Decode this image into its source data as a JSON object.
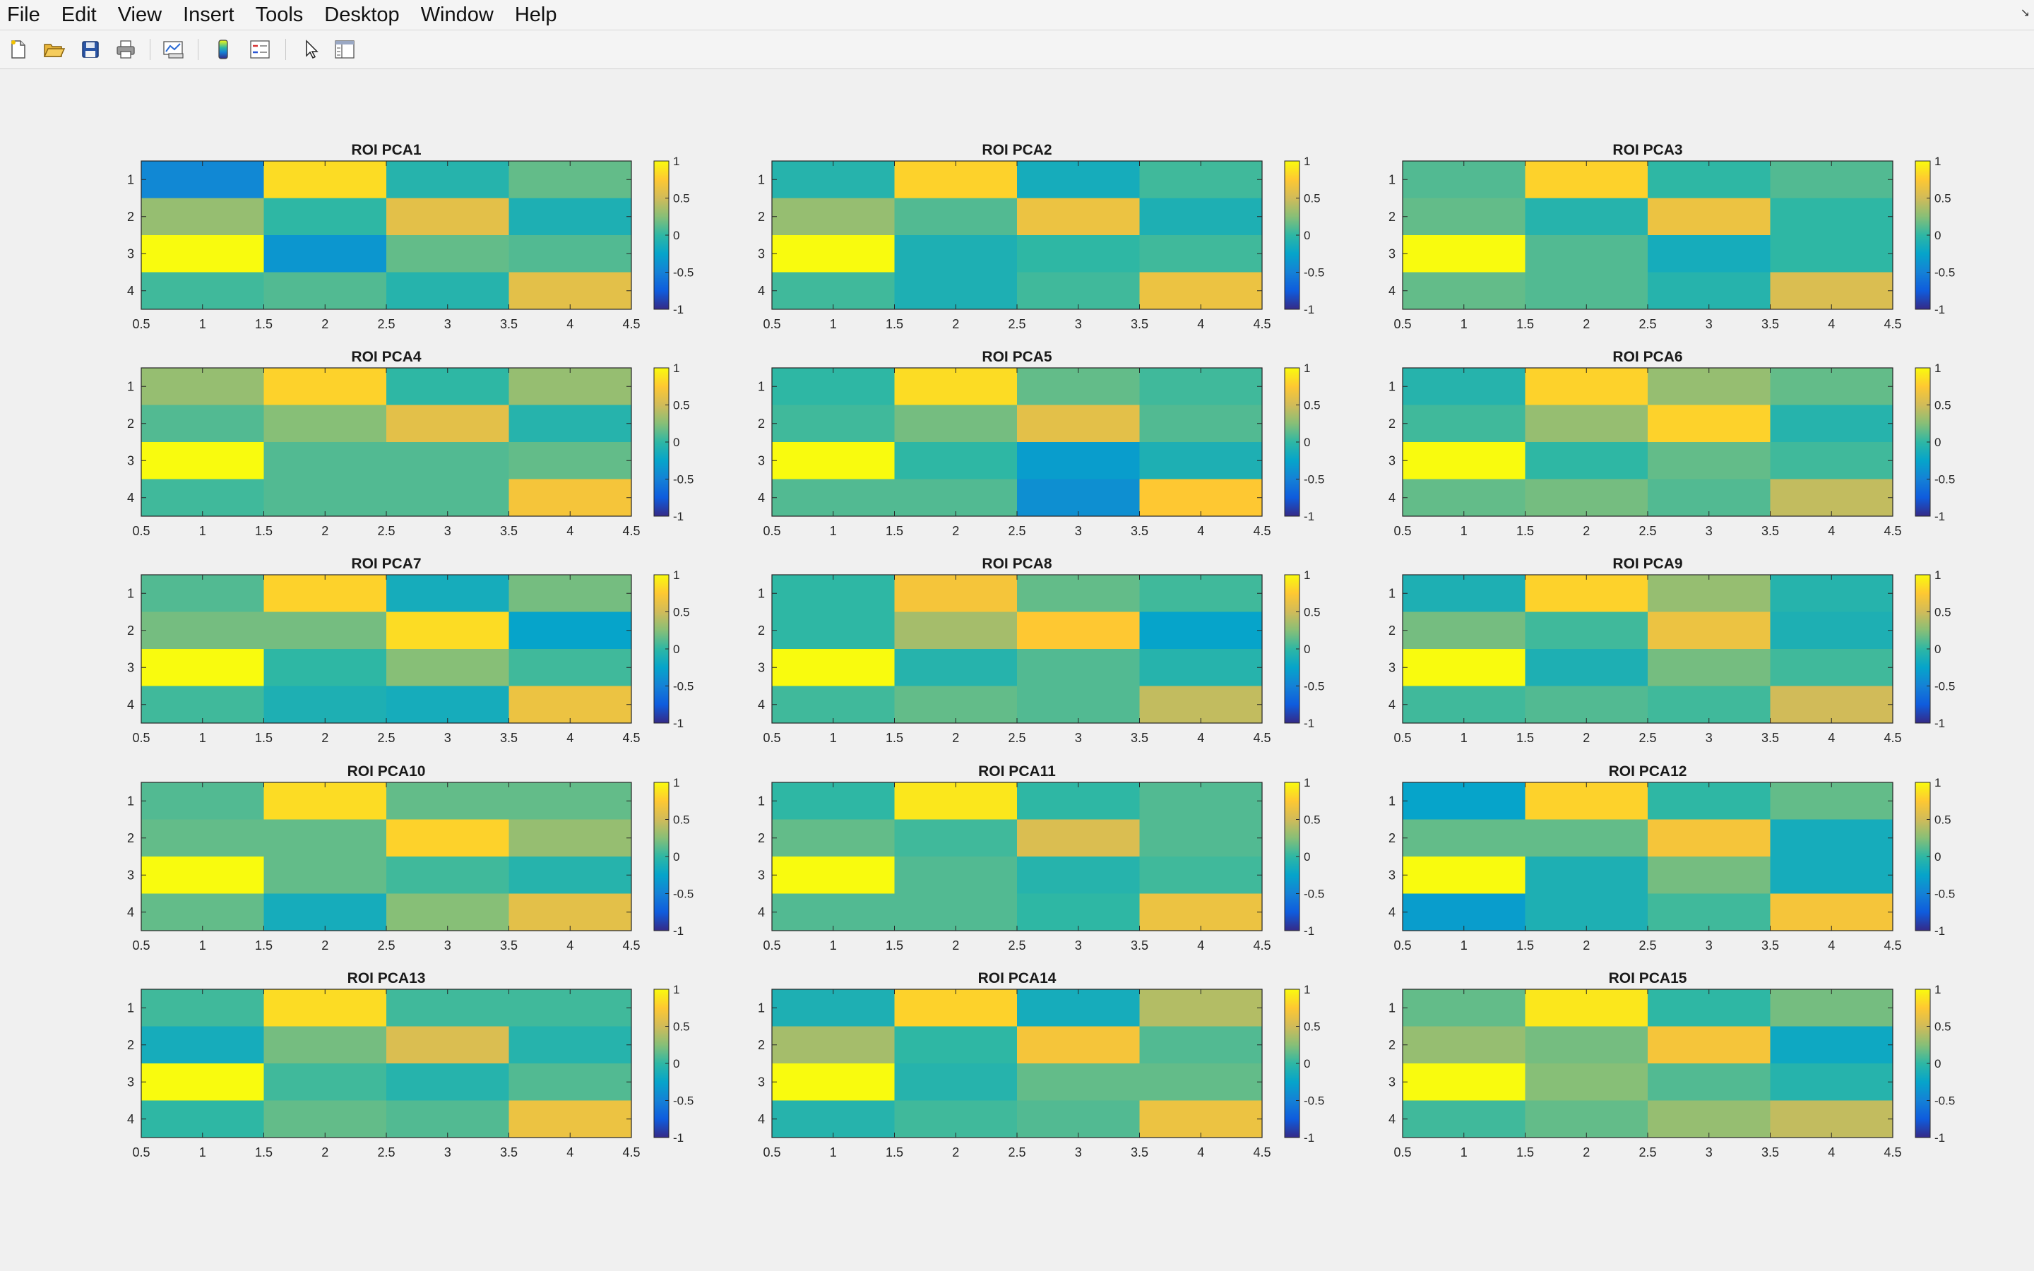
{
  "menubar": {
    "items": [
      "File",
      "Edit",
      "View",
      "Insert",
      "Tools",
      "Desktop",
      "Window",
      "Help"
    ]
  },
  "toolbar": {
    "buttons": [
      {
        "name": "new-figure-button",
        "icon": "new-file-icon"
      },
      {
        "name": "open-file-button",
        "icon": "folder-open-icon"
      },
      {
        "name": "save-figure-button",
        "icon": "floppy-disk-icon"
      },
      {
        "name": "print-figure-button",
        "icon": "printer-icon"
      },
      {
        "name": "link-plot-button",
        "icon": "link-plot-icon"
      },
      {
        "name": "insert-colorbar-button",
        "icon": "colorbar-icon"
      },
      {
        "name": "insert-legend-button",
        "icon": "legend-icon"
      },
      {
        "name": "edit-plot-button",
        "icon": "arrow-cursor-icon"
      },
      {
        "name": "property-inspector-button",
        "icon": "panel-icon"
      }
    ]
  },
  "colors": {
    "parula": [
      "#352a87",
      "#0f5cdd",
      "#1481d6",
      "#06a4ca",
      "#2eb7a4",
      "#87bf77",
      "#d1bb59",
      "#fec832",
      "#f9fb0e"
    ]
  },
  "chart_data": [
    {
      "type": "heatmap",
      "title": "ROI PCA1",
      "x": [
        1,
        2,
        3,
        4
      ],
      "y": [
        1,
        2,
        3,
        4
      ],
      "xlim": [
        0.5,
        4.5
      ],
      "ylim": [
        0.5,
        4.5
      ],
      "x_ticks": [
        "0.5",
        "1",
        "1.5",
        "2",
        "2.5",
        "3",
        "3.5",
        "4",
        "4.5"
      ],
      "y_ticks": [
        "1",
        "2",
        "3",
        "4"
      ],
      "clim": [
        -1,
        1
      ],
      "colorbar_ticks": [
        "1",
        "0.5",
        "0",
        "-0.5",
        "-1"
      ],
      "values": [
        [
          -0.45,
          0.85,
          -0.05,
          0.15
        ],
        [
          0.3,
          0.0,
          0.6,
          -0.1
        ],
        [
          1.0,
          -0.35,
          0.15,
          0.1
        ],
        [
          0.05,
          0.1,
          -0.05,
          0.6
        ]
      ]
    },
    {
      "type": "heatmap",
      "title": "ROI PCA2",
      "x": [
        1,
        2,
        3,
        4
      ],
      "y": [
        1,
        2,
        3,
        4
      ],
      "xlim": [
        0.5,
        4.5
      ],
      "ylim": [
        0.5,
        4.5
      ],
      "x_ticks": [
        "0.5",
        "1",
        "1.5",
        "2",
        "2.5",
        "3",
        "3.5",
        "4",
        "4.5"
      ],
      "y_ticks": [
        "1",
        "2",
        "3",
        "4"
      ],
      "clim": [
        -1,
        1
      ],
      "colorbar_ticks": [
        "1",
        "0.5",
        "0",
        "-0.5",
        "-1"
      ],
      "values": [
        [
          -0.05,
          0.8,
          -0.15,
          0.05
        ],
        [
          0.3,
          0.1,
          0.65,
          -0.1
        ],
        [
          1.0,
          -0.1,
          0.0,
          0.05
        ],
        [
          0.05,
          -0.1,
          0.05,
          0.65
        ]
      ]
    },
    {
      "type": "heatmap",
      "title": "ROI PCA3",
      "x": [
        1,
        2,
        3,
        4
      ],
      "y": [
        1,
        2,
        3,
        4
      ],
      "xlim": [
        0.5,
        4.5
      ],
      "ylim": [
        0.5,
        4.5
      ],
      "x_ticks": [
        "0.5",
        "1",
        "1.5",
        "2",
        "2.5",
        "3",
        "3.5",
        "4",
        "4.5"
      ],
      "y_ticks": [
        "1",
        "2",
        "3",
        "4"
      ],
      "clim": [
        -1,
        1
      ],
      "colorbar_ticks": [
        "1",
        "0.5",
        "0",
        "-0.5",
        "-1"
      ],
      "values": [
        [
          0.1,
          0.8,
          0.0,
          0.1
        ],
        [
          0.15,
          -0.05,
          0.65,
          0.0
        ],
        [
          1.0,
          0.1,
          -0.15,
          0.0
        ],
        [
          0.15,
          0.1,
          -0.05,
          0.55
        ]
      ]
    },
    {
      "type": "heatmap",
      "title": "ROI PCA4",
      "x": [
        1,
        2,
        3,
        4
      ],
      "y": [
        1,
        2,
        3,
        4
      ],
      "xlim": [
        0.5,
        4.5
      ],
      "ylim": [
        0.5,
        4.5
      ],
      "x_ticks": [
        "0.5",
        "1",
        "1.5",
        "2",
        "2.5",
        "3",
        "3.5",
        "4",
        "4.5"
      ],
      "y_ticks": [
        "1",
        "2",
        "3",
        "4"
      ],
      "clim": [
        -1,
        1
      ],
      "colorbar_ticks": [
        "1",
        "0.5",
        "0",
        "-0.5",
        "-1"
      ],
      "values": [
        [
          0.3,
          0.8,
          0.0,
          0.3
        ],
        [
          0.1,
          0.25,
          0.6,
          -0.05
        ],
        [
          1.0,
          0.1,
          0.1,
          0.15
        ],
        [
          0.05,
          0.1,
          0.1,
          0.7
        ]
      ]
    },
    {
      "type": "heatmap",
      "title": "ROI PCA5",
      "x": [
        1,
        2,
        3,
        4
      ],
      "y": [
        1,
        2,
        3,
        4
      ],
      "xlim": [
        0.5,
        4.5
      ],
      "ylim": [
        0.5,
        4.5
      ],
      "x_ticks": [
        "0.5",
        "1",
        "1.5",
        "2",
        "2.5",
        "3",
        "3.5",
        "4",
        "4.5"
      ],
      "y_ticks": [
        "1",
        "2",
        "3",
        "4"
      ],
      "clim": [
        -1,
        1
      ],
      "colorbar_ticks": [
        "1",
        "0.5",
        "0",
        "-0.5",
        "-1"
      ],
      "values": [
        [
          0.0,
          0.85,
          0.15,
          0.05
        ],
        [
          0.05,
          0.2,
          0.6,
          0.1
        ],
        [
          1.0,
          0.0,
          -0.3,
          -0.1
        ],
        [
          0.1,
          0.1,
          -0.4,
          0.75
        ]
      ]
    },
    {
      "type": "heatmap",
      "title": "ROI PCA6",
      "x": [
        1,
        2,
        3,
        4
      ],
      "y": [
        1,
        2,
        3,
        4
      ],
      "xlim": [
        0.5,
        4.5
      ],
      "ylim": [
        0.5,
        4.5
      ],
      "x_ticks": [
        "0.5",
        "1",
        "1.5",
        "2",
        "2.5",
        "3",
        "3.5",
        "4",
        "4.5"
      ],
      "y_ticks": [
        "1",
        "2",
        "3",
        "4"
      ],
      "clim": [
        -1,
        1
      ],
      "colorbar_ticks": [
        "1",
        "0.5",
        "0",
        "-0.5",
        "-1"
      ],
      "values": [
        [
          -0.05,
          0.8,
          0.3,
          0.15
        ],
        [
          0.05,
          0.3,
          0.8,
          -0.05
        ],
        [
          1.0,
          0.0,
          0.15,
          0.05
        ],
        [
          0.15,
          0.2,
          0.1,
          0.45
        ]
      ]
    },
    {
      "type": "heatmap",
      "title": "ROI PCA7",
      "x": [
        1,
        2,
        3,
        4
      ],
      "y": [
        1,
        2,
        3,
        4
      ],
      "xlim": [
        0.5,
        4.5
      ],
      "ylim": [
        0.5,
        4.5
      ],
      "x_ticks": [
        "0.5",
        "1",
        "1.5",
        "2",
        "2.5",
        "3",
        "3.5",
        "4",
        "4.5"
      ],
      "y_ticks": [
        "1",
        "2",
        "3",
        "4"
      ],
      "clim": [
        -1,
        1
      ],
      "colorbar_ticks": [
        "1",
        "0.5",
        "0",
        "-0.5",
        "-1"
      ],
      "values": [
        [
          0.1,
          0.8,
          -0.15,
          0.2
        ],
        [
          0.2,
          0.2,
          0.85,
          -0.25
        ],
        [
          1.0,
          0.0,
          0.25,
          0.05
        ],
        [
          0.05,
          -0.1,
          -0.15,
          0.65
        ]
      ]
    },
    {
      "type": "heatmap",
      "title": "ROI PCA8",
      "x": [
        1,
        2,
        3,
        4
      ],
      "y": [
        1,
        2,
        3,
        4
      ],
      "xlim": [
        0.5,
        4.5
      ],
      "ylim": [
        0.5,
        4.5
      ],
      "x_ticks": [
        "0.5",
        "1",
        "1.5",
        "2",
        "2.5",
        "3",
        "3.5",
        "4",
        "4.5"
      ],
      "y_ticks": [
        "1",
        "2",
        "3",
        "4"
      ],
      "clim": [
        -1,
        1
      ],
      "colorbar_ticks": [
        "1",
        "0.5",
        "0",
        "-0.5",
        "-1"
      ],
      "values": [
        [
          0.0,
          0.7,
          0.15,
          0.05
        ],
        [
          0.0,
          0.35,
          0.75,
          -0.25
        ],
        [
          1.0,
          -0.05,
          0.1,
          -0.05
        ],
        [
          0.05,
          0.15,
          0.1,
          0.45
        ]
      ]
    },
    {
      "type": "heatmap",
      "title": "ROI PCA9",
      "x": [
        1,
        2,
        3,
        4
      ],
      "y": [
        1,
        2,
        3,
        4
      ],
      "xlim": [
        0.5,
        4.5
      ],
      "ylim": [
        0.5,
        4.5
      ],
      "x_ticks": [
        "0.5",
        "1",
        "1.5",
        "2",
        "2.5",
        "3",
        "3.5",
        "4",
        "4.5"
      ],
      "y_ticks": [
        "1",
        "2",
        "3",
        "4"
      ],
      "clim": [
        -1,
        1
      ],
      "colorbar_ticks": [
        "1",
        "0.5",
        "0",
        "-0.5",
        "-1"
      ],
      "values": [
        [
          -0.1,
          0.8,
          0.3,
          -0.05
        ],
        [
          0.2,
          0.05,
          0.65,
          -0.1
        ],
        [
          1.0,
          -0.1,
          0.2,
          0.05
        ],
        [
          0.05,
          0.1,
          0.05,
          0.5
        ]
      ]
    },
    {
      "type": "heatmap",
      "title": "ROI PCA10",
      "x": [
        1,
        2,
        3,
        4
      ],
      "y": [
        1,
        2,
        3,
        4
      ],
      "xlim": [
        0.5,
        4.5
      ],
      "ylim": [
        0.5,
        4.5
      ],
      "x_ticks": [
        "0.5",
        "1",
        "1.5",
        "2",
        "2.5",
        "3",
        "3.5",
        "4",
        "4.5"
      ],
      "y_ticks": [
        "1",
        "2",
        "3",
        "4"
      ],
      "clim": [
        -1,
        1
      ],
      "colorbar_ticks": [
        "1",
        "0.5",
        "0",
        "-0.5",
        "-1"
      ],
      "values": [
        [
          0.1,
          0.85,
          0.15,
          0.15
        ],
        [
          0.15,
          0.15,
          0.8,
          0.3
        ],
        [
          1.0,
          0.15,
          0.05,
          -0.05
        ],
        [
          0.15,
          -0.15,
          0.25,
          0.6
        ]
      ]
    },
    {
      "type": "heatmap",
      "title": "ROI PCA11",
      "x": [
        1,
        2,
        3,
        4
      ],
      "y": [
        1,
        2,
        3,
        4
      ],
      "xlim": [
        0.5,
        4.5
      ],
      "ylim": [
        0.5,
        4.5
      ],
      "x_ticks": [
        "0.5",
        "1",
        "1.5",
        "2",
        "2.5",
        "3",
        "3.5",
        "4",
        "4.5"
      ],
      "y_ticks": [
        "1",
        "2",
        "3",
        "4"
      ],
      "clim": [
        -1,
        1
      ],
      "colorbar_ticks": [
        "1",
        "0.5",
        "0",
        "-0.5",
        "-1"
      ],
      "values": [
        [
          0.0,
          0.9,
          0.0,
          0.1
        ],
        [
          0.15,
          0.05,
          0.55,
          0.1
        ],
        [
          1.0,
          0.1,
          -0.05,
          0.05
        ],
        [
          0.1,
          0.1,
          0.0,
          0.65
        ]
      ]
    },
    {
      "type": "heatmap",
      "title": "ROI PCA12",
      "x": [
        1,
        2,
        3,
        4
      ],
      "y": [
        1,
        2,
        3,
        4
      ],
      "xlim": [
        0.5,
        4.5
      ],
      "ylim": [
        0.5,
        4.5
      ],
      "x_ticks": [
        "0.5",
        "1",
        "1.5",
        "2",
        "2.5",
        "3",
        "3.5",
        "4",
        "4.5"
      ],
      "y_ticks": [
        "1",
        "2",
        "3",
        "4"
      ],
      "clim": [
        -1,
        1
      ],
      "colorbar_ticks": [
        "1",
        "0.5",
        "0",
        "-0.5",
        "-1"
      ],
      "values": [
        [
          -0.25,
          0.8,
          0.0,
          0.15
        ],
        [
          0.15,
          0.15,
          0.7,
          -0.15
        ],
        [
          1.0,
          -0.1,
          0.2,
          -0.15
        ],
        [
          -0.3,
          -0.1,
          0.05,
          0.7
        ]
      ]
    },
    {
      "type": "heatmap",
      "title": "ROI PCA13",
      "x": [
        1,
        2,
        3,
        4
      ],
      "y": [
        1,
        2,
        3,
        4
      ],
      "xlim": [
        0.5,
        4.5
      ],
      "ylim": [
        0.5,
        4.5
      ],
      "x_ticks": [
        "0.5",
        "1",
        "1.5",
        "2",
        "2.5",
        "3",
        "3.5",
        "4",
        "4.5"
      ],
      "y_ticks": [
        "1",
        "2",
        "3",
        "4"
      ],
      "clim": [
        -1,
        1
      ],
      "colorbar_ticks": [
        "1",
        "0.5",
        "0",
        "-0.5",
        "-1"
      ],
      "values": [
        [
          0.05,
          0.85,
          0.05,
          0.05
        ],
        [
          -0.15,
          0.2,
          0.55,
          -0.05
        ],
        [
          1.0,
          0.05,
          -0.05,
          0.1
        ],
        [
          0.0,
          0.15,
          0.1,
          0.65
        ]
      ]
    },
    {
      "type": "heatmap",
      "title": "ROI PCA14",
      "x": [
        1,
        2,
        3,
        4
      ],
      "y": [
        1,
        2,
        3,
        4
      ],
      "xlim": [
        0.5,
        4.5
      ],
      "ylim": [
        0.5,
        4.5
      ],
      "x_ticks": [
        "0.5",
        "1",
        "1.5",
        "2",
        "2.5",
        "3",
        "3.5",
        "4",
        "4.5"
      ],
      "y_ticks": [
        "1",
        "2",
        "3",
        "4"
      ],
      "clim": [
        -1,
        1
      ],
      "colorbar_ticks": [
        "1",
        "0.5",
        "0",
        "-0.5",
        "-1"
      ],
      "values": [
        [
          -0.1,
          0.8,
          -0.15,
          0.4
        ],
        [
          0.35,
          0.0,
          0.7,
          0.1
        ],
        [
          1.0,
          -0.05,
          0.15,
          0.15
        ],
        [
          -0.05,
          0.05,
          0.1,
          0.65
        ]
      ]
    },
    {
      "type": "heatmap",
      "title": "ROI PCA15",
      "x": [
        1,
        2,
        3,
        4
      ],
      "y": [
        1,
        2,
        3,
        4
      ],
      "xlim": [
        0.5,
        4.5
      ],
      "ylim": [
        0.5,
        4.5
      ],
      "x_ticks": [
        "0.5",
        "1",
        "1.5",
        "2",
        "2.5",
        "3",
        "3.5",
        "4",
        "4.5"
      ],
      "y_ticks": [
        "1",
        "2",
        "3",
        "4"
      ],
      "clim": [
        -1,
        1
      ],
      "colorbar_ticks": [
        "1",
        "0.5",
        "0",
        "-0.5",
        "-1"
      ],
      "values": [
        [
          0.15,
          0.9,
          0.0,
          0.2
        ],
        [
          0.3,
          0.2,
          0.7,
          -0.2
        ],
        [
          1.0,
          0.25,
          0.1,
          -0.05
        ],
        [
          0.05,
          0.15,
          0.3,
          0.45
        ]
      ]
    }
  ]
}
